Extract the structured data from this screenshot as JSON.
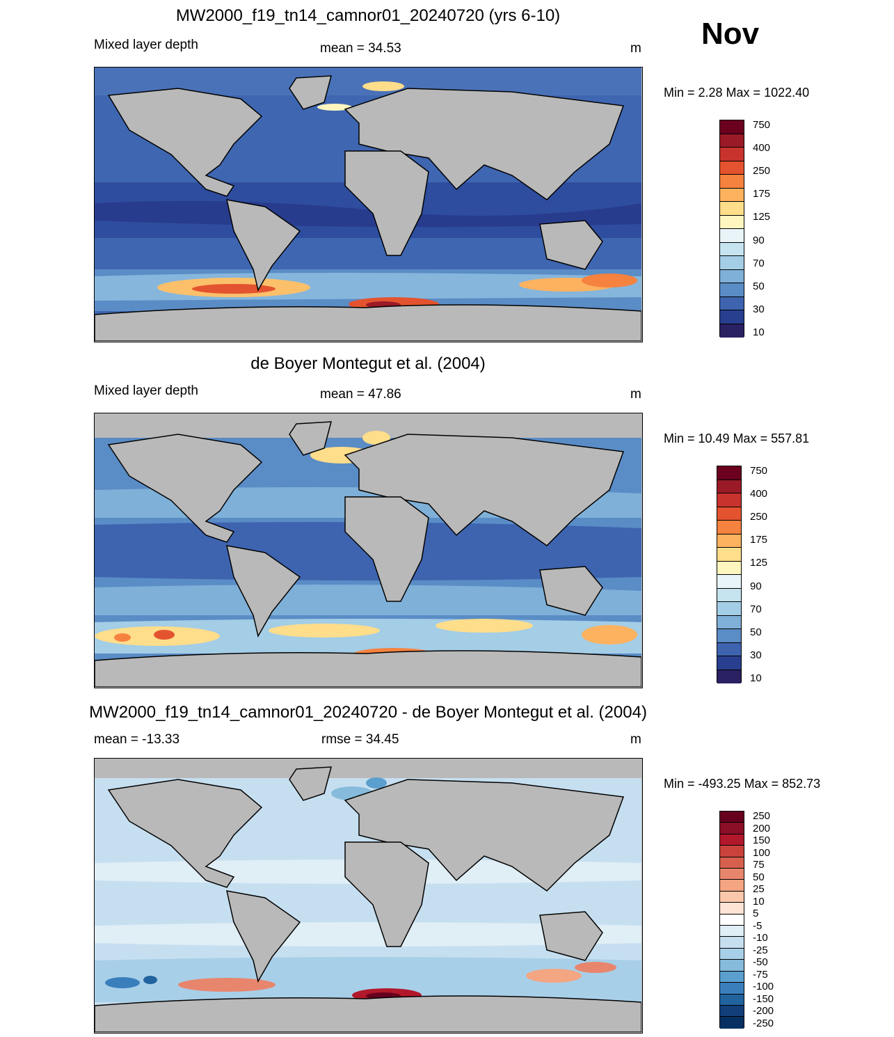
{
  "month": "Nov",
  "panels": [
    {
      "title": "MW2000_f19_tn14_camnor01_20240720 (yrs 6-10)",
      "left_label": "Mixed layer depth",
      "center_label": "mean =  34.53",
      "units": "m",
      "minmax": "Min =   2.28 Max = 1022.40",
      "legend_labels": [
        "750",
        "400",
        "250",
        "175",
        "125",
        "90",
        "70",
        "50",
        "30",
        "10"
      ]
    },
    {
      "title": "de Boyer Montegut et al. (2004)",
      "left_label": "Mixed layer depth",
      "center_label": "mean =  47.86",
      "units": "m",
      "minmax": "Min =  10.49 Max = 557.81",
      "legend_labels": [
        "750",
        "400",
        "250",
        "175",
        "125",
        "90",
        "70",
        "50",
        "30",
        "10"
      ]
    },
    {
      "title": "MW2000_f19_tn14_camnor01_20240720 - de Boyer Montegut et al. (2004)",
      "left_label": "mean = -13.33",
      "center_label": "rmse =  34.45",
      "units": "m",
      "minmax": "Min = -493.25 Max = 852.73",
      "legend_labels": [
        "250",
        "200",
        "150",
        "100",
        "75",
        "50",
        "25",
        "10",
        "5",
        "-5",
        "-10",
        "-25",
        "-50",
        "-75",
        "-100",
        "-150",
        "-200",
        "-250"
      ]
    }
  ],
  "colors": {
    "seq_scale": [
      "#6b001f",
      "#9b1a28",
      "#c8332d",
      "#e4532f",
      "#f5823f",
      "#fcb25f",
      "#fedd8b",
      "#fff6bf",
      "#e8f4f8",
      "#c6e4f0",
      "#a4cde6",
      "#7fb0d8",
      "#5a8cc6",
      "#3e64b0",
      "#283f8f",
      "#2a2163"
    ],
    "div_scale": [
      "#67001f",
      "#8a0f27",
      "#b2182b",
      "#c9423c",
      "#d6604d",
      "#e8866d",
      "#f4a582",
      "#fac7aa",
      "#fde4d5",
      "#ffffff",
      "#e0eef6",
      "#c6dff0",
      "#a8cfe8",
      "#86bbdc",
      "#5b9fcf",
      "#3a7fbc",
      "#21639f",
      "#123f7a",
      "#053061"
    ],
    "land": "#b9b9b9"
  }
}
